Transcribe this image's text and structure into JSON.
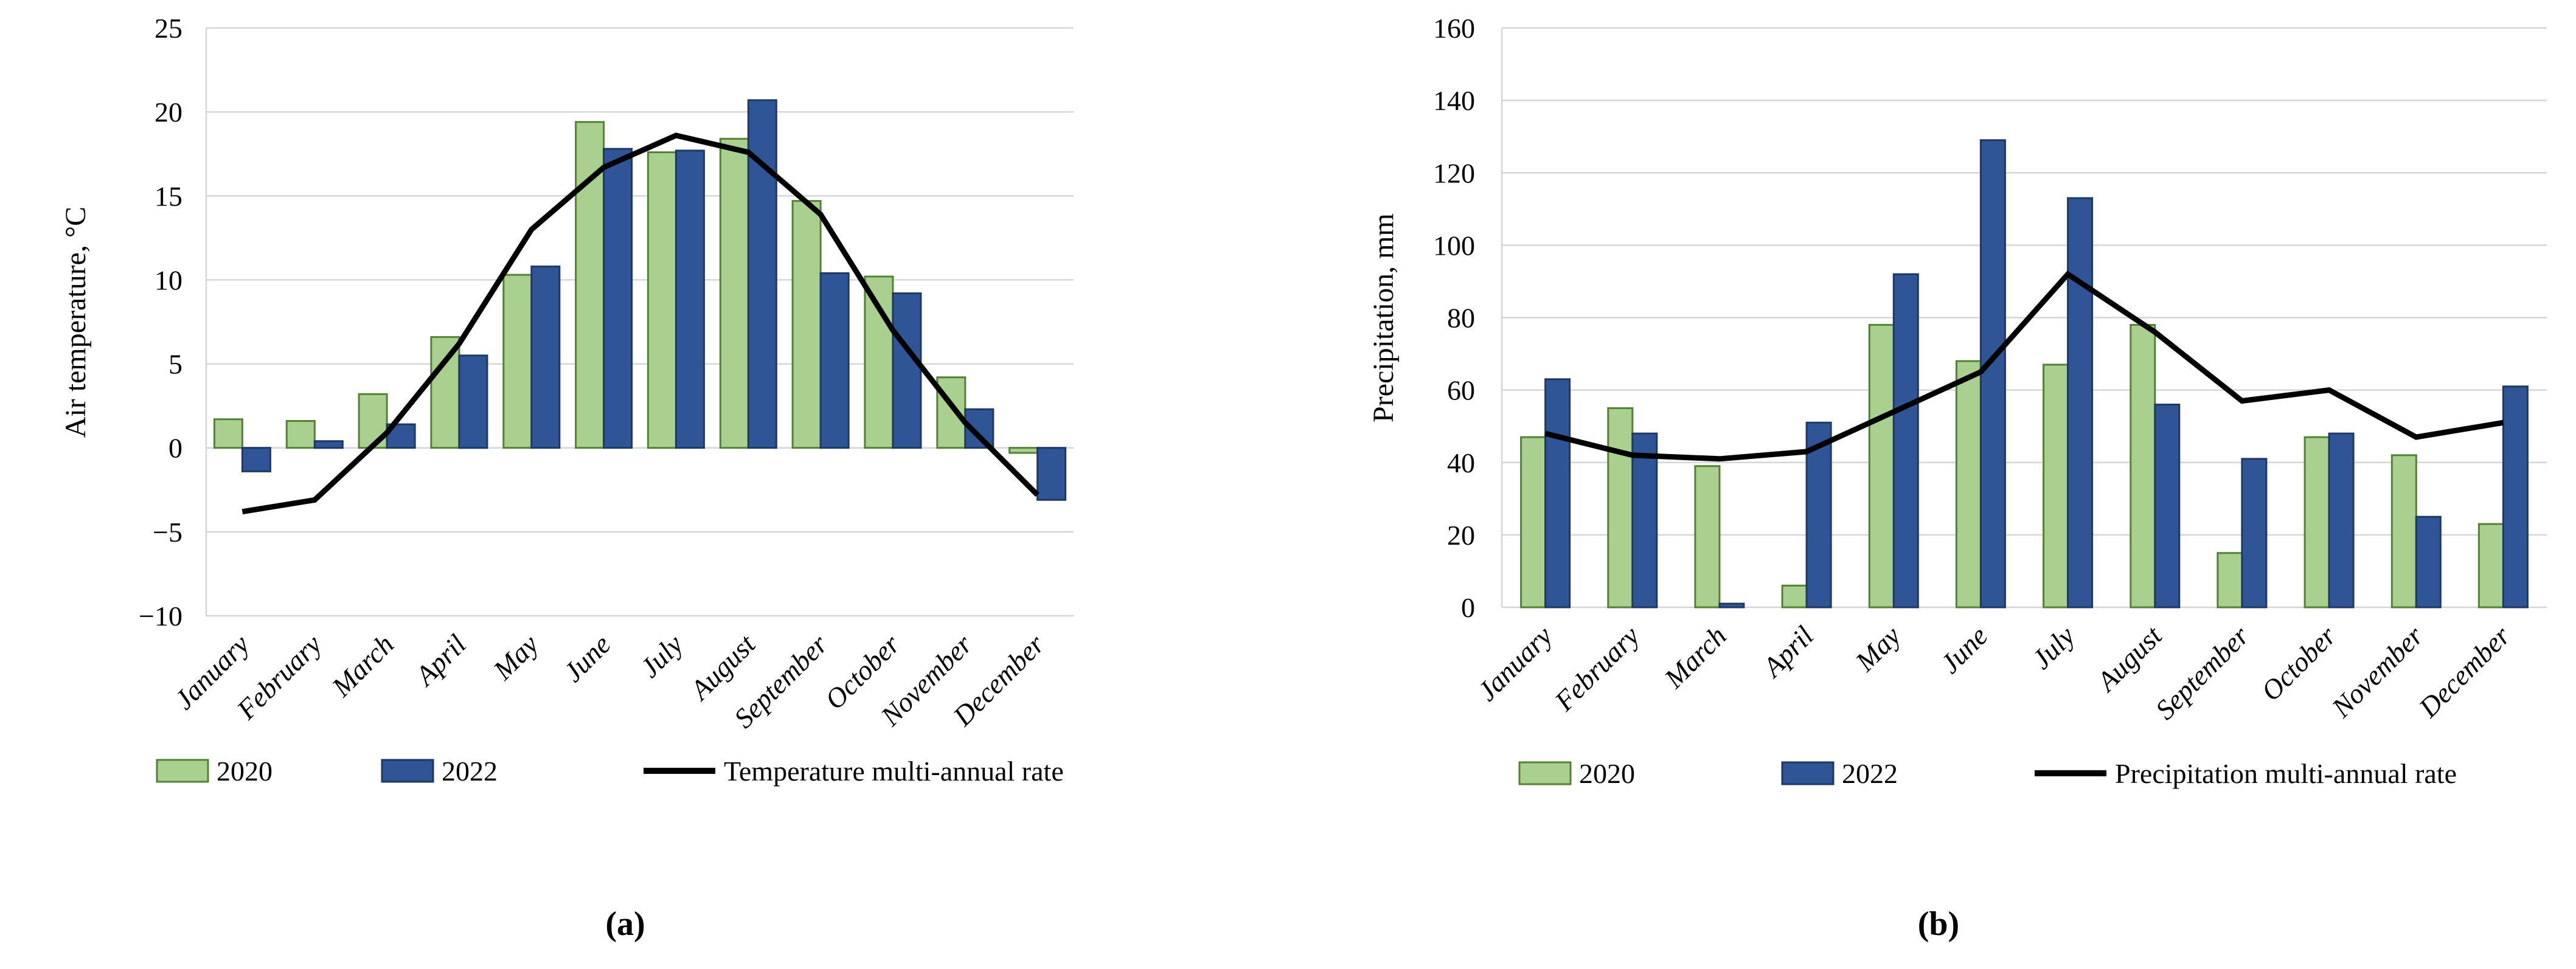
{
  "figure": {
    "captions": {
      "a": "(a)",
      "b": "(b)"
    }
  },
  "chart_data": [
    {
      "type": "bar",
      "panel": "a",
      "title": "",
      "xlabel": "",
      "ylabel": "Air temperature, °C",
      "ylim": [
        -10,
        25
      ],
      "ytick_step": 5,
      "grid": true,
      "legend_position": "bottom",
      "categories": [
        "January",
        "February",
        "March",
        "April",
        "May",
        "June",
        "July",
        "August",
        "September",
        "October",
        "November",
        "December"
      ],
      "series": [
        {
          "name": "2020",
          "kind": "bar",
          "fill": "#a9d08e",
          "stroke": "#538135",
          "values": [
            1.7,
            1.6,
            3.2,
            6.6,
            10.3,
            19.4,
            17.6,
            18.4,
            14.7,
            10.2,
            4.2,
            -0.3
          ]
        },
        {
          "name": "2022",
          "kind": "bar",
          "fill": "#2f5597",
          "stroke": "#1f3864",
          "values": [
            -1.4,
            0.4,
            1.4,
            5.5,
            10.8,
            17.8,
            17.7,
            20.7,
            10.4,
            9.2,
            2.3,
            -3.1
          ]
        },
        {
          "name": "Temperature multi-annual rate",
          "kind": "line",
          "stroke": "#000000",
          "values": [
            -3.8,
            -3.1,
            0.9,
            6.2,
            13,
            16.7,
            18.6,
            17.6,
            13.9,
            7,
            1.5,
            -2.8
          ]
        }
      ]
    },
    {
      "type": "bar",
      "panel": "b",
      "title": "",
      "xlabel": "",
      "ylabel": "Precipitation, mm",
      "ylim": [
        0,
        160
      ],
      "ytick_step": 20,
      "grid": true,
      "legend_position": "bottom",
      "categories": [
        "January",
        "February",
        "March",
        "April",
        "May",
        "June",
        "July",
        "August",
        "September",
        "October",
        "November",
        "December"
      ],
      "series": [
        {
          "name": "2020",
          "kind": "bar",
          "fill": "#a9d08e",
          "stroke": "#538135",
          "values": [
            47,
            55,
            39,
            6,
            78,
            68,
            67,
            78,
            15,
            47,
            42,
            23
          ]
        },
        {
          "name": "2022",
          "kind": "bar",
          "fill": "#2f5597",
          "stroke": "#1f3864",
          "values": [
            63,
            48,
            1,
            51,
            92,
            129,
            113,
            56,
            41,
            48,
            25,
            61
          ]
        },
        {
          "name": "Precipitation multi-annual rate",
          "kind": "line",
          "stroke": "#000000",
          "values": [
            48,
            42,
            41,
            43,
            54,
            65,
            92,
            76,
            57,
            60,
            47,
            51
          ]
        }
      ]
    }
  ]
}
